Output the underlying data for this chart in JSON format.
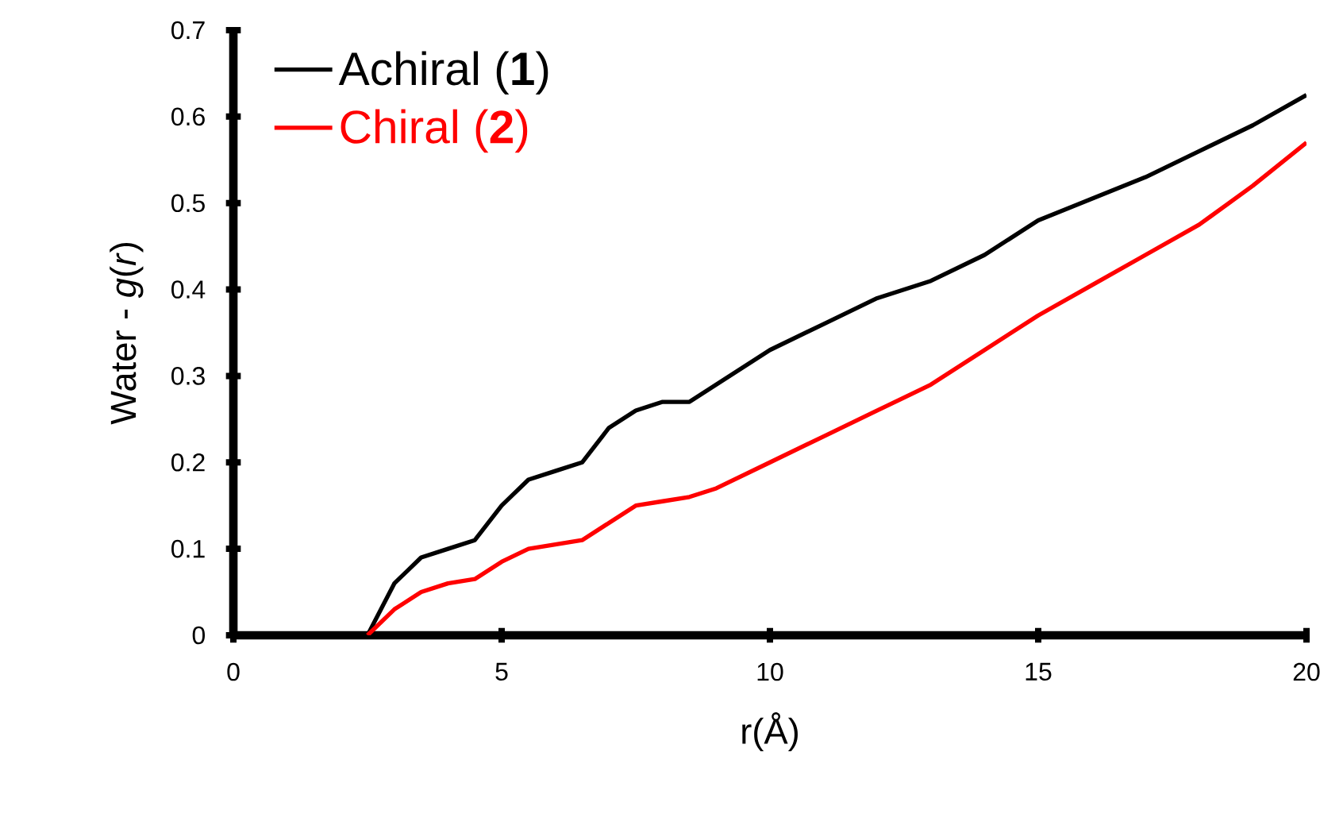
{
  "chart_data": {
    "type": "line",
    "xlabel": "r(Å)",
    "ylabel": "Water - *g*(*r*)",
    "xlim": [
      0,
      20
    ],
    "ylim": [
      0,
      0.7
    ],
    "xticks": [
      0,
      5,
      10,
      15,
      20
    ],
    "yticks": [
      0,
      0.1,
      0.2,
      0.3,
      0.4,
      0.5,
      0.6,
      0.7
    ],
    "grid": false,
    "legend": "top left",
    "marker": "none",
    "line_style": "solid",
    "series": [
      {
        "name": "Achiral (**1**)",
        "color": "#000000",
        "x": [
          2.5,
          3.0,
          3.5,
          4.0,
          4.5,
          5.0,
          5.5,
          6.0,
          6.5,
          7.0,
          7.5,
          8.0,
          8.5,
          9.0,
          10.0,
          11.0,
          12.0,
          13.0,
          14.0,
          15.0,
          16.0,
          17.0,
          18.0,
          19.0,
          20.0
        ],
        "values": [
          0,
          0.06,
          0.09,
          0.1,
          0.11,
          0.15,
          0.18,
          0.19,
          0.2,
          0.24,
          0.26,
          0.27,
          0.27,
          0.29,
          0.33,
          0.36,
          0.39,
          0.41,
          0.44,
          0.48,
          0.505,
          0.53,
          0.56,
          0.59,
          0.625
        ]
      },
      {
        "name": "Chiral (**2**)",
        "color": "#ff0000",
        "x": [
          2.5,
          3.0,
          3.5,
          4.0,
          4.5,
          5.0,
          5.5,
          6.0,
          6.5,
          7.0,
          7.5,
          8.0,
          8.5,
          9.0,
          10.0,
          11.0,
          12.0,
          13.0,
          14.0,
          15.0,
          16.0,
          17.0,
          18.0,
          19.0,
          20.0
        ],
        "values": [
          0,
          0.03,
          0.05,
          0.06,
          0.065,
          0.085,
          0.1,
          0.105,
          0.11,
          0.13,
          0.15,
          0.155,
          0.16,
          0.17,
          0.2,
          0.23,
          0.26,
          0.29,
          0.33,
          0.37,
          0.405,
          0.44,
          0.475,
          0.52,
          0.57
        ]
      }
    ]
  }
}
